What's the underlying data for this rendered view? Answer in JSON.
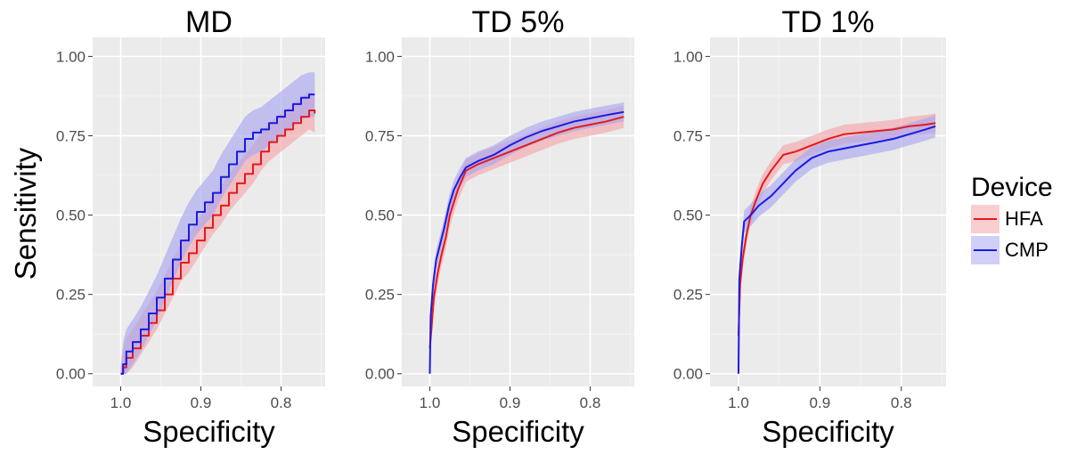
{
  "chart_data": {
    "type": "line",
    "ylabel": "Sensitivity",
    "xlabel": "Specificity",
    "xlim": [
      1.035,
      0.745
    ],
    "ylim": [
      -0.04,
      1.06
    ],
    "x_ticks": [
      1.0,
      0.9,
      0.8
    ],
    "x_tick_labels": [
      "1.0",
      "0.9",
      "0.8"
    ],
    "y_ticks": [
      0,
      0.25,
      0.5,
      0.75,
      1.0
    ],
    "y_tick_labels": [
      "0.00",
      "0.25",
      "0.50",
      "0.75",
      "1.00"
    ],
    "grid": true,
    "legend": {
      "title": "Device",
      "position": "right",
      "entries": [
        {
          "label": "HFA",
          "color": "#e41a1c"
        },
        {
          "label": "CMP",
          "color": "#1a1ae4"
        }
      ]
    },
    "colors": {
      "HFA": "#e41a1c",
      "CMP": "#1a1ae4",
      "HFA_band": "#f4a6aa",
      "CMP_band": "#a9a8f0",
      "panel_bg": "#ebebeb"
    },
    "panels": [
      {
        "title": "MD",
        "series": [
          {
            "name": "HFA",
            "step": true,
            "band": 0.06,
            "points": [
              [
                1.0,
                0.0
              ],
              [
                0.997,
                0.02
              ],
              [
                0.993,
                0.05
              ],
              [
                0.985,
                0.08
              ],
              [
                0.975,
                0.12
              ],
              [
                0.965,
                0.16
              ],
              [
                0.955,
                0.2
              ],
              [
                0.945,
                0.25
              ],
              [
                0.935,
                0.3
              ],
              [
                0.925,
                0.35
              ],
              [
                0.915,
                0.38
              ],
              [
                0.905,
                0.42
              ],
              [
                0.895,
                0.46
              ],
              [
                0.885,
                0.5
              ],
              [
                0.875,
                0.53
              ],
              [
                0.865,
                0.57
              ],
              [
                0.855,
                0.6
              ],
              [
                0.845,
                0.63
              ],
              [
                0.835,
                0.66
              ],
              [
                0.825,
                0.7
              ],
              [
                0.815,
                0.73
              ],
              [
                0.805,
                0.75
              ],
              [
                0.795,
                0.77
              ],
              [
                0.785,
                0.79
              ],
              [
                0.775,
                0.81
              ],
              [
                0.765,
                0.83
              ],
              [
                0.758,
                0.82
              ]
            ]
          },
          {
            "name": "CMP",
            "step": true,
            "band": 0.07,
            "points": [
              [
                1.0,
                0.0
              ],
              [
                0.997,
                0.03
              ],
              [
                0.993,
                0.07
              ],
              [
                0.985,
                0.1
              ],
              [
                0.975,
                0.14
              ],
              [
                0.965,
                0.19
              ],
              [
                0.955,
                0.24
              ],
              [
                0.945,
                0.3
              ],
              [
                0.935,
                0.36
              ],
              [
                0.925,
                0.42
              ],
              [
                0.915,
                0.47
              ],
              [
                0.905,
                0.51
              ],
              [
                0.895,
                0.54
              ],
              [
                0.885,
                0.57
              ],
              [
                0.875,
                0.62
              ],
              [
                0.865,
                0.66
              ],
              [
                0.855,
                0.7
              ],
              [
                0.845,
                0.74
              ],
              [
                0.835,
                0.76
              ],
              [
                0.825,
                0.77
              ],
              [
                0.815,
                0.79
              ],
              [
                0.805,
                0.81
              ],
              [
                0.795,
                0.83
              ],
              [
                0.785,
                0.85
              ],
              [
                0.775,
                0.87
              ],
              [
                0.765,
                0.88
              ],
              [
                0.758,
                0.88
              ]
            ]
          }
        ]
      },
      {
        "title": "TD 5%",
        "series": [
          {
            "name": "HFA",
            "step": false,
            "band": 0.035,
            "points": [
              [
                1.0,
                0.08
              ],
              [
                0.998,
                0.14
              ],
              [
                0.995,
                0.24
              ],
              [
                0.99,
                0.32
              ],
              [
                0.985,
                0.38
              ],
              [
                0.98,
                0.43
              ],
              [
                0.975,
                0.5
              ],
              [
                0.97,
                0.54
              ],
              [
                0.965,
                0.58
              ],
              [
                0.955,
                0.64
              ],
              [
                0.94,
                0.66
              ],
              [
                0.92,
                0.68
              ],
              [
                0.9,
                0.7
              ],
              [
                0.88,
                0.72
              ],
              [
                0.86,
                0.74
              ],
              [
                0.84,
                0.76
              ],
              [
                0.82,
                0.775
              ],
              [
                0.8,
                0.785
              ],
              [
                0.78,
                0.795
              ],
              [
                0.758,
                0.81
              ]
            ]
          },
          {
            "name": "CMP",
            "step": false,
            "band": 0.03,
            "points": [
              [
                1.0,
                0.0
              ],
              [
                0.999,
                0.18
              ],
              [
                0.996,
                0.28
              ],
              [
                0.992,
                0.36
              ],
              [
                0.988,
                0.4
              ],
              [
                0.982,
                0.46
              ],
              [
                0.976,
                0.53
              ],
              [
                0.97,
                0.58
              ],
              [
                0.962,
                0.62
              ],
              [
                0.955,
                0.65
              ],
              [
                0.94,
                0.67
              ],
              [
                0.92,
                0.69
              ],
              [
                0.9,
                0.72
              ],
              [
                0.88,
                0.745
              ],
              [
                0.86,
                0.765
              ],
              [
                0.84,
                0.78
              ],
              [
                0.82,
                0.795
              ],
              [
                0.8,
                0.805
              ],
              [
                0.78,
                0.815
              ],
              [
                0.758,
                0.825
              ]
            ]
          }
        ]
      },
      {
        "title": "TD 1%",
        "series": [
          {
            "name": "HFA",
            "step": false,
            "band": 0.03,
            "points": [
              [
                1.0,
                0.12
              ],
              [
                0.998,
                0.28
              ],
              [
                0.995,
                0.36
              ],
              [
                0.99,
                0.44
              ],
              [
                0.985,
                0.5
              ],
              [
                0.978,
                0.55
              ],
              [
                0.97,
                0.6
              ],
              [
                0.96,
                0.64
              ],
              [
                0.945,
                0.69
              ],
              [
                0.93,
                0.7
              ],
              [
                0.91,
                0.72
              ],
              [
                0.89,
                0.74
              ],
              [
                0.87,
                0.755
              ],
              [
                0.85,
                0.76
              ],
              [
                0.83,
                0.765
              ],
              [
                0.81,
                0.77
              ],
              [
                0.79,
                0.78
              ],
              [
                0.77,
                0.785
              ],
              [
                0.758,
                0.79
              ]
            ]
          },
          {
            "name": "CMP",
            "step": false,
            "band": 0.035,
            "points": [
              [
                1.0,
                0.0
              ],
              [
                0.999,
                0.3
              ],
              [
                0.996,
                0.4
              ],
              [
                0.993,
                0.48
              ],
              [
                0.985,
                0.5
              ],
              [
                0.975,
                0.53
              ],
              [
                0.96,
                0.56
              ],
              [
                0.945,
                0.6
              ],
              [
                0.93,
                0.64
              ],
              [
                0.91,
                0.68
              ],
              [
                0.89,
                0.7
              ],
              [
                0.87,
                0.71
              ],
              [
                0.85,
                0.72
              ],
              [
                0.83,
                0.73
              ],
              [
                0.81,
                0.74
              ],
              [
                0.79,
                0.755
              ],
              [
                0.77,
                0.77
              ],
              [
                0.758,
                0.78
              ]
            ]
          }
        ]
      }
    ]
  }
}
